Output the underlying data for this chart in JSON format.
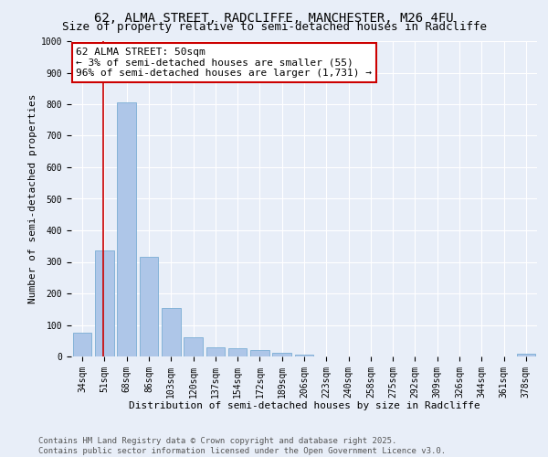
{
  "title1": "62, ALMA STREET, RADCLIFFE, MANCHESTER, M26 4FU",
  "title2": "Size of property relative to semi-detached houses in Radcliffe",
  "xlabel": "Distribution of semi-detached houses by size in Radcliffe",
  "ylabel": "Number of semi-detached properties",
  "categories": [
    "34sqm",
    "51sqm",
    "68sqm",
    "86sqm",
    "103sqm",
    "120sqm",
    "137sqm",
    "154sqm",
    "172sqm",
    "189sqm",
    "206sqm",
    "223sqm",
    "240sqm",
    "258sqm",
    "275sqm",
    "292sqm",
    "309sqm",
    "326sqm",
    "344sqm",
    "361sqm",
    "378sqm"
  ],
  "values": [
    75,
    335,
    805,
    315,
    155,
    60,
    30,
    25,
    20,
    12,
    7,
    0,
    0,
    0,
    0,
    0,
    0,
    0,
    0,
    0,
    8
  ],
  "bar_color": "#aec6e8",
  "bar_edge_color": "#7aadd4",
  "red_line_x": 0.925,
  "annotation_text": "62 ALMA STREET: 50sqm\n← 3% of semi-detached houses are smaller (55)\n96% of semi-detached houses are larger (1,731) →",
  "annotation_box_color": "#ffffff",
  "annotation_box_edge_color": "#cc0000",
  "ylim": [
    0,
    1000
  ],
  "yticks": [
    0,
    100,
    200,
    300,
    400,
    500,
    600,
    700,
    800,
    900,
    1000
  ],
  "background_color": "#e8eef8",
  "plot_bg_color": "#e8eef8",
  "grid_color": "#ffffff",
  "footer_line1": "Contains HM Land Registry data © Crown copyright and database right 2025.",
  "footer_line2": "Contains public sector information licensed under the Open Government Licence v3.0.",
  "title_fontsize": 10,
  "subtitle_fontsize": 9,
  "axis_label_fontsize": 8,
  "tick_fontsize": 7,
  "annotation_fontsize": 8,
  "footer_fontsize": 6.5
}
